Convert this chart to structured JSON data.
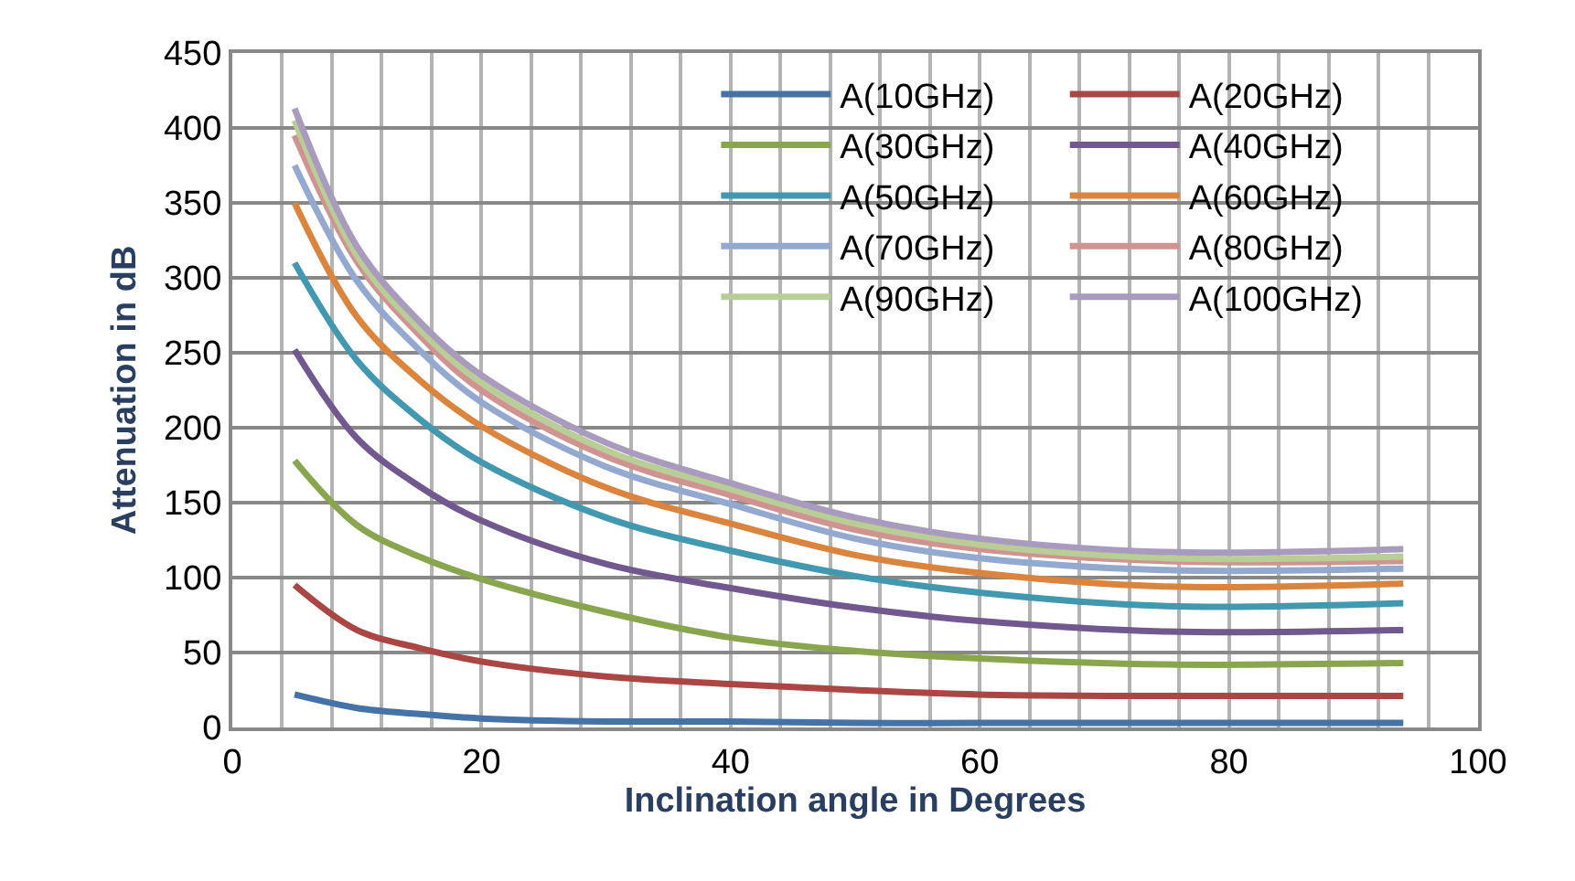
{
  "chart_data": {
    "type": "line",
    "xlabel": "Inclination angle in Degrees",
    "ylabel": "Attenuation in dB",
    "x": [
      5,
      10,
      15,
      20,
      30,
      40,
      50,
      60,
      75,
      94
    ],
    "xlim": [
      0,
      100
    ],
    "xticks": [
      0,
      20,
      40,
      60,
      80,
      100
    ],
    "ylim": [
      0,
      450
    ],
    "yticks": [
      0,
      50,
      100,
      150,
      200,
      250,
      300,
      350,
      400,
      450
    ],
    "grid": true,
    "legend": "top right",
    "line_style": "solid",
    "marker": "none",
    "series": [
      {
        "name": "A(10GHz)",
        "color": "#4572a7",
        "values": [
          22,
          13,
          9,
          6,
          4,
          4,
          3,
          3,
          3,
          3
        ]
      },
      {
        "name": "A(20GHz)",
        "color": "#aa4643",
        "values": [
          95,
          65,
          53,
          44,
          34,
          29,
          25,
          22,
          21,
          21
        ]
      },
      {
        "name": "A(30GHz)",
        "color": "#89a54e",
        "values": [
          178,
          135,
          114,
          99,
          77,
          60,
          51,
          46,
          42,
          43
        ]
      },
      {
        "name": "A(40GHz)",
        "color": "#71588f",
        "values": [
          252,
          193,
          161,
          138,
          109,
          93,
          80,
          71,
          64,
          65
        ]
      },
      {
        "name": "A(50GHz)",
        "color": "#4198af",
        "values": [
          310,
          245,
          206,
          177,
          140,
          118,
          101,
          90,
          81,
          83
        ]
      },
      {
        "name": "A(60GHz)",
        "color": "#db843d",
        "values": [
          350,
          274,
          232,
          201,
          160,
          136,
          115,
          103,
          94,
          96
        ]
      },
      {
        "name": "A(70GHz)",
        "color": "#93a9cf",
        "values": [
          375,
          298,
          252,
          217,
          174,
          149,
          126,
          113,
          105,
          106
        ]
      },
      {
        "name": "A(80GHz)",
        "color": "#d19392",
        "values": [
          395,
          311,
          262,
          225,
          181,
          155,
          132,
          119,
          111,
          111
        ]
      },
      {
        "name": "A(90GHz)",
        "color": "#b9cd96",
        "values": [
          405,
          315,
          266,
          230,
          185,
          159,
          136,
          122,
          113,
          114
        ]
      },
      {
        "name": "A(100GHz)",
        "color": "#a99bbd",
        "values": [
          413,
          321,
          271,
          235,
          190,
          163,
          140,
          126,
          117,
          119
        ]
      }
    ]
  }
}
